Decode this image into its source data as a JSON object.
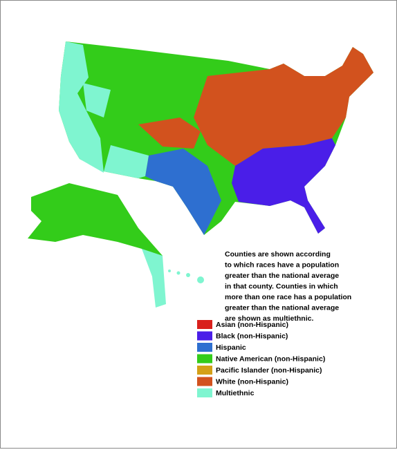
{
  "description_lines": [
    "Counties are shown according",
    "to which races have a population",
    "greater than the national average",
    "in that county.  Counties in which",
    "more than one race has a population",
    "greater than the national average",
    "are shown as multiethnic."
  ],
  "legend": [
    {
      "label": "Asian (non-Hispanic)",
      "color": "#d9201c"
    },
    {
      "label": "Black (non-Hispanic)",
      "color": "#4a1ee8"
    },
    {
      "label": "Hispanic",
      "color": "#2e6fd0"
    },
    {
      "label": "Native American (non-Hispanic)",
      "color": "#33cc1a"
    },
    {
      "label": "Pacific Islander (non-Hispanic)",
      "color": "#d4a017"
    },
    {
      "label": "White (non-Hispanic)",
      "color": "#d2521e"
    },
    {
      "label": "Multiethnic",
      "color": "#7ff5d0"
    }
  ]
}
